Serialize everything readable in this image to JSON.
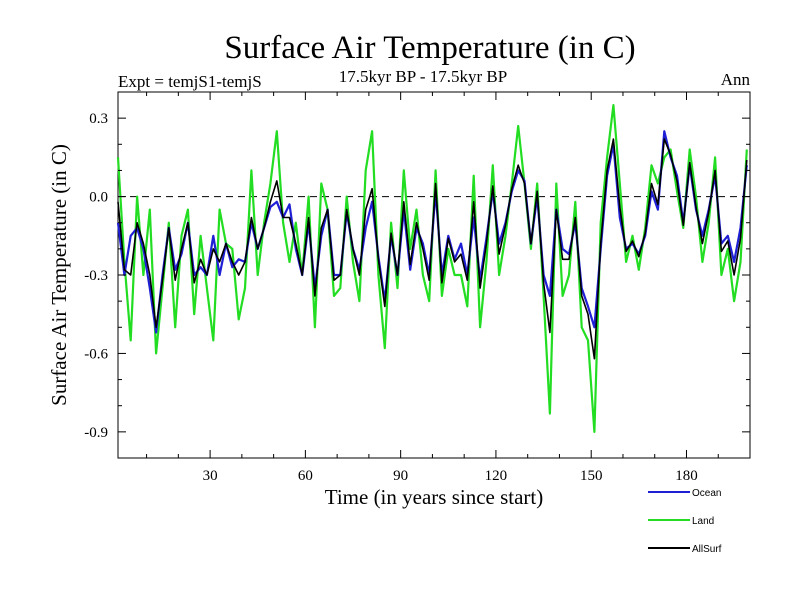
{
  "chart_data": {
    "type": "line",
    "title": "Surface Air Temperature (in C)",
    "subtitle_left": "Expt = temjS1-temjS",
    "subtitle_center": "17.5kyr BP - 17.5kyr BP",
    "subtitle_right": "Ann",
    "xlabel": "Time (in years since start)",
    "ylabel": "Surface Air Temperature (in C)",
    "xlim": [
      1,
      200
    ],
    "ylim": [
      -1.0,
      0.4
    ],
    "xticks": [
      30,
      60,
      90,
      120,
      150,
      180
    ],
    "xtick_labels": [
      "30",
      "60",
      "90",
      "120",
      "150",
      "180"
    ],
    "yticks": [
      0.3,
      0.0,
      -0.3,
      -0.6,
      -0.9
    ],
    "ytick_labels": [
      "0.3",
      "0.0",
      "-0.3",
      "-0.6",
      "-0.9"
    ],
    "reference_line": {
      "y": 0.0,
      "style": "dashed"
    },
    "legend": {
      "position": "bottom-right"
    },
    "series": [
      {
        "name": "Ocean",
        "color": "#1f1fd6",
        "x": [
          1,
          3,
          5,
          7,
          9,
          11,
          13,
          15,
          17,
          19,
          21,
          23,
          25,
          27,
          29,
          31,
          33,
          35,
          37,
          39,
          41,
          43,
          45,
          47,
          49,
          51,
          53,
          55,
          57,
          59,
          61,
          63,
          65,
          67,
          69,
          71,
          73,
          75,
          77,
          79,
          81,
          83,
          85,
          87,
          89,
          91,
          93,
          95,
          97,
          99,
          101,
          103,
          105,
          107,
          109,
          111,
          113,
          115,
          117,
          119,
          121,
          123,
          125,
          127,
          129,
          131,
          133,
          135,
          137,
          139,
          141,
          143,
          145,
          147,
          149,
          151,
          153,
          155,
          157,
          159,
          161,
          163,
          165,
          167,
          169,
          171,
          173,
          175,
          177,
          179,
          181,
          183,
          185,
          187,
          189,
          191,
          193,
          195,
          197,
          199
        ],
        "values": [
          -0.1,
          -0.3,
          -0.15,
          -0.12,
          -0.2,
          -0.35,
          -0.52,
          -0.3,
          -0.12,
          -0.28,
          -0.22,
          -0.1,
          -0.3,
          -0.27,
          -0.3,
          -0.15,
          -0.3,
          -0.18,
          -0.27,
          -0.24,
          -0.25,
          -0.1,
          -0.2,
          -0.12,
          -0.04,
          -0.02,
          -0.08,
          -0.03,
          -0.2,
          -0.3,
          -0.1,
          -0.35,
          -0.15,
          -0.05,
          -0.3,
          -0.3,
          -0.06,
          -0.2,
          -0.28,
          -0.12,
          -0.02,
          -0.23,
          -0.4,
          -0.15,
          -0.3,
          -0.05,
          -0.28,
          -0.12,
          -0.18,
          -0.3,
          0.02,
          -0.3,
          -0.15,
          -0.24,
          -0.18,
          -0.3,
          -0.08,
          -0.32,
          -0.16,
          0.02,
          -0.18,
          -0.1,
          0.02,
          0.1,
          0.06,
          -0.18,
          0.0,
          -0.3,
          -0.38,
          -0.05,
          -0.2,
          -0.22,
          -0.1,
          -0.35,
          -0.42,
          -0.5,
          -0.2,
          0.08,
          0.2,
          -0.08,
          -0.2,
          -0.18,
          -0.22,
          -0.15,
          0.02,
          -0.05,
          0.25,
          0.15,
          0.08,
          -0.1,
          0.12,
          -0.05,
          -0.15,
          -0.05,
          0.08,
          -0.18,
          -0.15,
          -0.25,
          -0.12,
          0.12
        ]
      },
      {
        "name": "Land",
        "color": "#22dd22",
        "x": [
          1,
          3,
          5,
          7,
          9,
          11,
          13,
          15,
          17,
          19,
          21,
          23,
          25,
          27,
          29,
          31,
          33,
          35,
          37,
          39,
          41,
          43,
          45,
          47,
          49,
          51,
          53,
          55,
          57,
          59,
          61,
          63,
          65,
          67,
          69,
          71,
          73,
          75,
          77,
          79,
          81,
          83,
          85,
          87,
          89,
          91,
          93,
          95,
          97,
          99,
          101,
          103,
          105,
          107,
          109,
          111,
          113,
          115,
          117,
          119,
          121,
          123,
          125,
          127,
          129,
          131,
          133,
          135,
          137,
          139,
          141,
          143,
          145,
          147,
          149,
          151,
          153,
          155,
          157,
          159,
          161,
          163,
          165,
          167,
          169,
          171,
          173,
          175,
          177,
          179,
          181,
          183,
          185,
          187,
          189,
          191,
          193,
          195,
          197,
          199
        ],
        "values": [
          0.15,
          -0.25,
          -0.55,
          0.0,
          -0.3,
          -0.05,
          -0.6,
          -0.35,
          -0.1,
          -0.5,
          -0.15,
          -0.05,
          -0.45,
          -0.15,
          -0.35,
          -0.55,
          -0.05,
          -0.18,
          -0.2,
          -0.47,
          -0.35,
          0.1,
          -0.3,
          -0.1,
          0.05,
          0.25,
          -0.1,
          -0.25,
          -0.1,
          -0.3,
          0.0,
          -0.5,
          0.05,
          -0.05,
          -0.38,
          -0.35,
          0.0,
          -0.25,
          -0.4,
          0.1,
          0.25,
          -0.3,
          -0.58,
          -0.1,
          -0.35,
          0.1,
          -0.2,
          -0.05,
          -0.3,
          -0.4,
          0.1,
          -0.38,
          -0.2,
          -0.3,
          -0.3,
          -0.42,
          0.08,
          -0.5,
          -0.25,
          0.12,
          -0.3,
          -0.15,
          0.05,
          0.27,
          0.05,
          -0.2,
          0.05,
          -0.38,
          -0.83,
          0.05,
          -0.38,
          -0.3,
          -0.02,
          -0.5,
          -0.55,
          -0.9,
          -0.1,
          0.15,
          0.35,
          0.05,
          -0.25,
          -0.15,
          -0.28,
          -0.12,
          0.12,
          0.05,
          0.15,
          0.18,
          0.02,
          -0.12,
          0.18,
          0.0,
          -0.25,
          -0.1,
          0.15,
          -0.3,
          -0.2,
          -0.4,
          -0.25,
          0.18
        ]
      },
      {
        "name": "AllSurf",
        "color": "#000000",
        "x": [
          1,
          3,
          5,
          7,
          9,
          11,
          13,
          15,
          17,
          19,
          21,
          23,
          25,
          27,
          29,
          31,
          33,
          35,
          37,
          39,
          41,
          43,
          45,
          47,
          49,
          51,
          53,
          55,
          57,
          59,
          61,
          63,
          65,
          67,
          69,
          71,
          73,
          75,
          77,
          79,
          81,
          83,
          85,
          87,
          89,
          91,
          93,
          95,
          97,
          99,
          101,
          103,
          105,
          107,
          109,
          111,
          113,
          115,
          117,
          119,
          121,
          123,
          125,
          127,
          129,
          131,
          133,
          135,
          137,
          139,
          141,
          143,
          145,
          147,
          149,
          151,
          153,
          155,
          157,
          159,
          161,
          163,
          165,
          167,
          169,
          171,
          173,
          175,
          177,
          179,
          181,
          183,
          185,
          187,
          189,
          191,
          193,
          195,
          197,
          199
        ],
        "values": [
          -0.02,
          -0.28,
          -0.3,
          -0.1,
          -0.18,
          -0.3,
          -0.5,
          -0.32,
          -0.12,
          -0.32,
          -0.2,
          -0.1,
          -0.33,
          -0.24,
          -0.3,
          -0.2,
          -0.25,
          -0.18,
          -0.25,
          -0.3,
          -0.25,
          -0.08,
          -0.2,
          -0.12,
          -0.02,
          0.06,
          -0.08,
          -0.08,
          -0.18,
          -0.3,
          -0.08,
          -0.38,
          -0.12,
          -0.05,
          -0.32,
          -0.3,
          -0.05,
          -0.2,
          -0.3,
          -0.05,
          0.03,
          -0.24,
          -0.42,
          -0.14,
          -0.3,
          -0.02,
          -0.26,
          -0.1,
          -0.2,
          -0.32,
          0.05,
          -0.33,
          -0.16,
          -0.25,
          -0.22,
          -0.32,
          -0.02,
          -0.35,
          -0.18,
          0.04,
          -0.22,
          -0.11,
          0.03,
          0.12,
          0.05,
          -0.18,
          0.02,
          -0.33,
          -0.52,
          -0.05,
          -0.24,
          -0.24,
          -0.08,
          -0.38,
          -0.45,
          -0.62,
          -0.18,
          0.1,
          0.22,
          -0.04,
          -0.21,
          -0.17,
          -0.23,
          -0.14,
          0.05,
          -0.03,
          0.22,
          0.16,
          0.06,
          -0.11,
          0.13,
          -0.04,
          -0.18,
          -0.06,
          0.1,
          -0.21,
          -0.17,
          -0.3,
          -0.16,
          0.14
        ]
      }
    ]
  }
}
